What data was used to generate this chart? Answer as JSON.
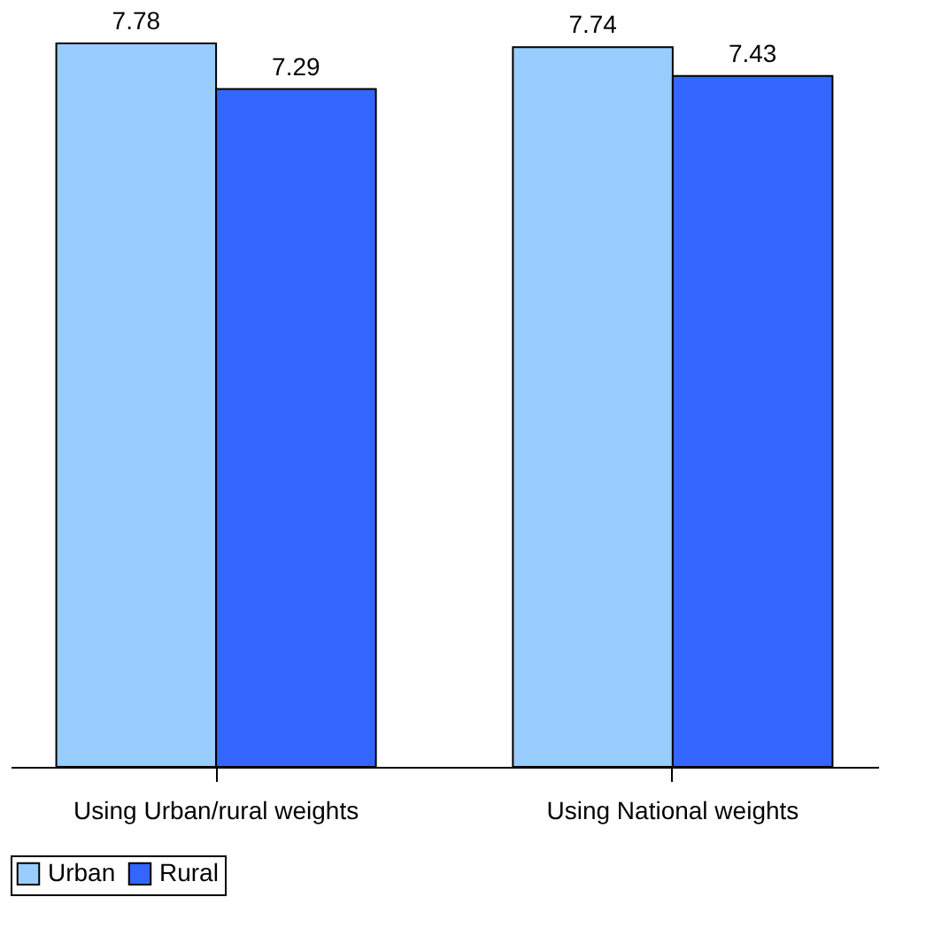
{
  "chart_data": {
    "type": "bar",
    "categories": [
      "Using Urban/rural weights",
      "Using National weights"
    ],
    "series": [
      {
        "name": "Urban",
        "color": "#99ccff",
        "values": [
          7.78,
          7.74
        ]
      },
      {
        "name": "Rural",
        "color": "#3366ff",
        "values": [
          7.29,
          7.43
        ]
      }
    ],
    "data_labels": true,
    "legend": "bottom",
    "grid": false
  }
}
